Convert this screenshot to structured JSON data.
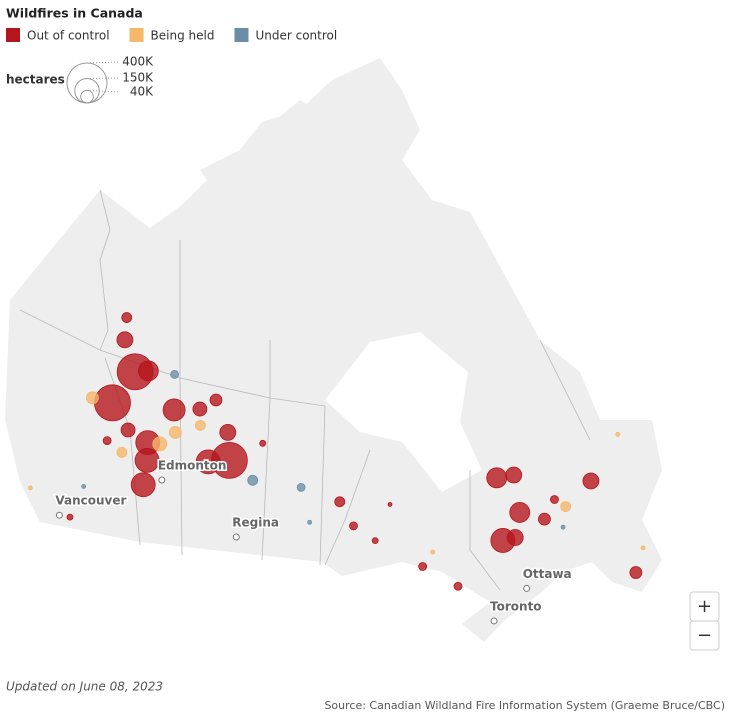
{
  "header": {
    "title": "Wildfires in Canada"
  },
  "legend": [
    {
      "label": "Out of control",
      "color": "#b5161d",
      "fires": [
        {
          "lon": -119.7,
          "lat": 60.3,
          "hectares": 324000
        },
        {
          "lon": -121.3,
          "lat": 57.8,
          "hectares": 324000
        },
        {
          "lon": -118.1,
          "lat": 60.6,
          "hectares": 100000
        },
        {
          "lon": -122.2,
          "lat": 62.2,
          "hectares": 64000
        },
        {
          "lon": -122.9,
          "lat": 63.7,
          "hectares": 25000
        },
        {
          "lon": -113.8,
          "lat": 58.4,
          "hectares": 121000
        },
        {
          "lon": -116.0,
          "lat": 55.8,
          "hectares": 144000
        },
        {
          "lon": -115.6,
          "lat": 54.6,
          "hectares": 144000
        },
        {
          "lon": -115.4,
          "lat": 52.9,
          "hectares": 144000
        },
        {
          "lon": -106.3,
          "lat": 55.6,
          "hectares": 324000
        },
        {
          "lon": -108.7,
          "lat": 55.3,
          "hectares": 144000
        },
        {
          "lon": -106.9,
          "lat": 57.5,
          "hectares": 64000
        },
        {
          "lon": -110.7,
          "lat": 58.8,
          "hectares": 49000
        },
        {
          "lon": -108.9,
          "lat": 59.6,
          "hectares": 36000
        },
        {
          "lon": -118.6,
          "lat": 56.3,
          "hectares": 49000
        },
        {
          "lon": -76.0,
          "lat": 53.3,
          "hectares": 100000
        },
        {
          "lon": -74.1,
          "lat": 53.2,
          "hectares": 64000
        },
        {
          "lon": -74.5,
          "lat": 50.6,
          "hectares": 100000
        },
        {
          "lon": -76.9,
          "lat": 49.0,
          "hectares": 144000
        },
        {
          "lon": -75.6,
          "lat": 49.0,
          "hectares": 64000
        },
        {
          "lon": -66.3,
          "lat": 51.2,
          "hectares": 64000
        },
        {
          "lon": -65.3,
          "lat": 44.2,
          "hectares": 36000
        },
        {
          "lon": -72.2,
          "lat": 49.7,
          "hectares": 36000
        },
        {
          "lon": -93.6,
          "lat": 53.1,
          "hectares": 25000
        },
        {
          "lon": -92.2,
          "lat": 51.4,
          "hectares": 16000
        },
        {
          "lon": -102.6,
          "lat": 57.0,
          "hectares": 9000
        },
        {
          "lon": -85.4,
          "lat": 48.2,
          "hectares": 16000
        },
        {
          "lon": -82.2,
          "lat": 46.5,
          "hectares": 16000
        },
        {
          "lon": -120.6,
          "lat": 55.2,
          "hectares": 16000
        },
        {
          "lon": -122.0,
          "lat": 49.4,
          "hectares": 9000
        },
        {
          "lon": -70.6,
          "lat": 50.8,
          "hectares": 16000
        },
        {
          "lon": -90.0,
          "lat": 50.3,
          "hectares": 9000
        },
        {
          "lon": -88.1,
          "lat": 52.7,
          "hectares": 4000
        }
      ]
    },
    {
      "label": "Being held",
      "color": "#f5b76a",
      "fires": [
        {
          "lon": -123.8,
          "lat": 57.7,
          "hectares": 36000
        },
        {
          "lon": -113.1,
          "lat": 56.9,
          "hectares": 36000
        },
        {
          "lon": -114.6,
          "lat": 55.9,
          "hectares": 49000
        },
        {
          "lon": -118.6,
          "lat": 54.7,
          "hectares": 25000
        },
        {
          "lon": -110.3,
          "lat": 57.7,
          "hectares": 25000
        },
        {
          "lon": -69.7,
          "lat": 50.1,
          "hectares": 25000
        },
        {
          "lon": -63.8,
          "lat": 45.6,
          "hectares": 4000
        },
        {
          "lon": -84.2,
          "lat": 49.1,
          "hectares": 4000
        },
        {
          "lon": -61.7,
          "lat": 53.5,
          "hectares": 4000
        },
        {
          "lon": -126.9,
          "lat": 50.4,
          "hectares": 4000
        }
      ]
    },
    {
      "label": "Under control",
      "color": "#6b8ea6",
      "fires": [
        {
          "lon": -114.7,
          "lat": 60.8,
          "hectares": 16000
        },
        {
          "lon": -103.4,
          "lat": 54.4,
          "hectares": 25000
        },
        {
          "lon": -97.9,
          "lat": 54.1,
          "hectares": 16000
        },
        {
          "lon": -112.9,
          "lat": 54.6,
          "hectares": 9000
        },
        {
          "lon": -121.6,
          "lat": 51.7,
          "hectares": 4000
        },
        {
          "lon": -70.6,
          "lat": 48.8,
          "hectares": 4000
        },
        {
          "lon": -96.9,
          "lat": 51.7,
          "hectares": 4000
        }
      ]
    }
  ],
  "size_legend": {
    "title": "hectares",
    "sizes": [
      {
        "value": 400000,
        "label": "400K"
      },
      {
        "value": 150000,
        "label": "150K"
      },
      {
        "value": 40000,
        "label": "40K"
      }
    ]
  },
  "cities": [
    {
      "name": "Vancouver",
      "lon": -123.1,
      "lat": 49.3
    },
    {
      "name": "Edmonton",
      "lon": -113.5,
      "lat": 53.5
    },
    {
      "name": "Regina",
      "lon": -104.6,
      "lat": 50.4
    },
    {
      "name": "Ottawa",
      "lon": -75.7,
      "lat": 45.4
    },
    {
      "name": "Toronto",
      "lon": -79.4,
      "lat": 43.7
    }
  ],
  "zoom": {
    "in": "+",
    "out": "−"
  },
  "footer": {
    "updated": "Updated on June 08, 2023",
    "source": "Source: Canadian Wildland Fire Information System (Graeme Bruce/CBC)"
  }
}
